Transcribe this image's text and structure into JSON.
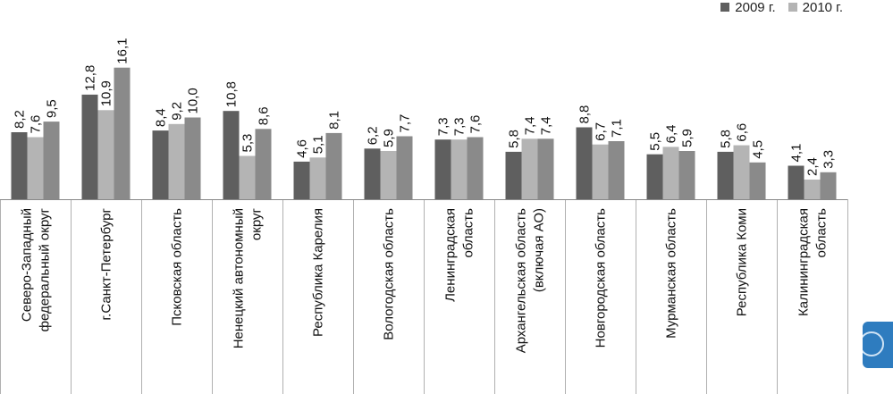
{
  "chart_data": {
    "type": "bar",
    "title": "",
    "xlabel": "",
    "ylabel": "",
    "ylim": [
      0,
      17
    ],
    "categories": [
      "Северо-Западный федеральный округ",
      "г.Санкт-Петербург",
      "Псковская область",
      "Ненецкий автономный округ",
      "Республика Карелия",
      "Вологодская область",
      "Ленинградская область",
      "Архангельская область (включая АО)",
      "Новгородская область",
      "Мурманская область",
      "Республика Коми",
      "Калининградская область"
    ],
    "category_lines": [
      [
        "Северо-Западный",
        "федеральный округ"
      ],
      [
        "г.Санкт-Петербург"
      ],
      [
        "Псковская область"
      ],
      [
        "Ненецкий автономный",
        "округ"
      ],
      [
        "Республика Карелия"
      ],
      [
        "Вологодская область"
      ],
      [
        "Ленинградская",
        "область"
      ],
      [
        "Архангельская область",
        "(включая АО)"
      ],
      [
        "Новгородская область"
      ],
      [
        "Мурманская область"
      ],
      [
        "Республика Коми"
      ],
      [
        "Калининградская",
        "область"
      ]
    ],
    "series": [
      {
        "name": "2009 г.",
        "color": "#5f5f5f",
        "values": [
          8.2,
          12.8,
          8.4,
          10.8,
          4.6,
          6.2,
          7.3,
          5.8,
          8.8,
          5.5,
          5.8,
          4.1
        ],
        "labels": [
          "8,2",
          "12,8",
          "8,4",
          "10,8",
          "4,6",
          "6,2",
          "7,3",
          "5,8",
          "8,8",
          "5,5",
          "5,8",
          "4,1"
        ]
      },
      {
        "name": "2010 г.",
        "color": "#b4b4b4",
        "values": [
          7.6,
          10.9,
          9.2,
          5.3,
          5.1,
          5.9,
          7.3,
          7.4,
          6.7,
          6.4,
          6.6,
          2.4
        ],
        "labels": [
          "7,6",
          "10,9",
          "9,2",
          "5,3",
          "5,1",
          "5,9",
          "7,3",
          "7,4",
          "6,7",
          "6,4",
          "6,6",
          "2,4"
        ]
      },
      {
        "name": "",
        "color": "#8a8a8a",
        "values": [
          9.5,
          16.1,
          10.0,
          8.6,
          8.1,
          7.7,
          7.6,
          7.4,
          7.1,
          5.9,
          4.5,
          3.3
        ],
        "labels": [
          "9,5",
          "16,1",
          "10,0",
          "8,6",
          "8,1",
          "7,7",
          "7,6",
          "7,4",
          "7,1",
          "5,9",
          "4,5",
          "3,3"
        ]
      }
    ],
    "legend": {
      "position": "top-right",
      "entries": [
        "2009 г.",
        "2010 г."
      ]
    }
  },
  "side_tab": {
    "color": "#2e7cbf"
  }
}
